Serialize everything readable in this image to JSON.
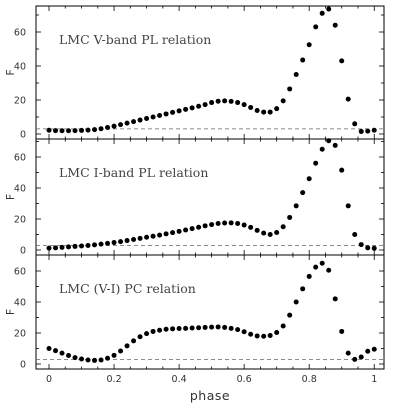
{
  "chart_data": [
    {
      "type": "scatter",
      "title": "LMC V-band PL relation",
      "ylabel": "F",
      "xlabel": "",
      "xlim": [
        -0.04,
        1.03
      ],
      "ylim": [
        -1,
        78
      ],
      "yticks": [
        "0",
        "20",
        "40",
        "60"
      ],
      "xticks": [
        "0",
        "0.2",
        "0.4",
        "0.6",
        "0.8",
        "1"
      ],
      "reference_line": 3,
      "x": [
        0.0,
        0.02,
        0.04,
        0.06,
        0.08,
        0.1,
        0.12,
        0.14,
        0.16,
        0.18,
        0.2,
        0.22,
        0.24,
        0.26,
        0.28,
        0.3,
        0.32,
        0.34,
        0.36,
        0.38,
        0.4,
        0.42,
        0.44,
        0.46,
        0.48,
        0.5,
        0.52,
        0.54,
        0.56,
        0.58,
        0.6,
        0.62,
        0.64,
        0.66,
        0.68,
        0.7,
        0.72,
        0.74,
        0.76,
        0.78,
        0.8,
        0.82,
        0.84,
        0.86,
        0.88,
        0.9,
        0.92,
        0.94,
        0.96,
        0.98,
        1.0
      ],
      "y": [
        2.2,
        2.0,
        1.9,
        1.9,
        2.0,
        2.1,
        2.3,
        2.6,
        3.1,
        3.8,
        4.6,
        5.5,
        6.4,
        7.3,
        8.2,
        9.1,
        10.0,
        10.9,
        11.8,
        12.7,
        13.6,
        14.5,
        15.4,
        16.3,
        17.3,
        18.5,
        19.3,
        19.5,
        19.2,
        18.5,
        17.3,
        15.6,
        13.8,
        12.9,
        12.9,
        14.9,
        19.5,
        26.5,
        35.0,
        43.5,
        52.5,
        63.0,
        71.0,
        73.5,
        64.0,
        43.0,
        20.5,
        6.0,
        1.5,
        1.7,
        2.2
      ]
    },
    {
      "type": "scatter",
      "title": "LMC I-band PL relation",
      "ylabel": "F",
      "xlabel": "",
      "xlim": [
        -0.04,
        1.03
      ],
      "ylim": [
        -1,
        78
      ],
      "yticks": [
        "0",
        "20",
        "40",
        "60"
      ],
      "xticks": [
        "0",
        "0.2",
        "0.4",
        "0.6",
        "0.8",
        "1"
      ],
      "reference_line": 3,
      "x": [
        0.0,
        0.02,
        0.04,
        0.06,
        0.08,
        0.1,
        0.12,
        0.14,
        0.16,
        0.18,
        0.2,
        0.22,
        0.24,
        0.26,
        0.28,
        0.3,
        0.32,
        0.34,
        0.36,
        0.38,
        0.4,
        0.42,
        0.44,
        0.46,
        0.48,
        0.5,
        0.52,
        0.54,
        0.56,
        0.58,
        0.6,
        0.62,
        0.64,
        0.66,
        0.68,
        0.7,
        0.72,
        0.74,
        0.76,
        0.78,
        0.8,
        0.82,
        0.84,
        0.86,
        0.88,
        0.9,
        0.92,
        0.94,
        0.96,
        0.98,
        1.0
      ],
      "y": [
        1.2,
        1.4,
        1.7,
        2.0,
        2.3,
        2.6,
        2.9,
        3.3,
        3.8,
        4.3,
        4.8,
        5.4,
        6.1,
        6.8,
        7.5,
        8.2,
        8.9,
        9.6,
        10.4,
        11.2,
        12.0,
        12.9,
        13.8,
        14.7,
        15.6,
        16.4,
        17.1,
        17.4,
        17.5,
        17.1,
        16.1,
        14.6,
        12.7,
        10.9,
        10.0,
        11.3,
        15.0,
        21.0,
        28.5,
        37.0,
        46.0,
        56.0,
        65.0,
        70.5,
        67.5,
        51.5,
        28.5,
        10.0,
        3.5,
        1.4,
        1.1
      ]
    },
    {
      "type": "scatter",
      "title": "LMC (V-I) PC relation",
      "ylabel": "F",
      "xlabel": "phase",
      "xlim": [
        -0.04,
        1.03
      ],
      "ylim": [
        -1,
        78
      ],
      "yticks": [
        "0",
        "20",
        "40",
        "60"
      ],
      "xticks": [
        "0",
        "0.2",
        "0.4",
        "0.6",
        "0.8",
        "1"
      ],
      "reference_line": 3,
      "x": [
        0.0,
        0.02,
        0.04,
        0.06,
        0.08,
        0.1,
        0.12,
        0.14,
        0.16,
        0.18,
        0.2,
        0.22,
        0.24,
        0.26,
        0.28,
        0.3,
        0.32,
        0.34,
        0.36,
        0.38,
        0.4,
        0.42,
        0.44,
        0.46,
        0.48,
        0.5,
        0.52,
        0.54,
        0.56,
        0.58,
        0.6,
        0.62,
        0.64,
        0.66,
        0.68,
        0.7,
        0.72,
        0.74,
        0.76,
        0.78,
        0.8,
        0.82,
        0.84,
        0.86,
        0.88,
        0.9,
        0.92,
        0.94,
        0.96,
        0.98,
        1.0
      ],
      "y": [
        10.0,
        8.6,
        7.0,
        5.5,
        4.1,
        3.2,
        2.6,
        2.3,
        2.6,
        3.7,
        5.6,
        8.4,
        11.7,
        14.9,
        17.6,
        19.6,
        21.0,
        21.8,
        22.4,
        22.7,
        22.9,
        23.0,
        23.2,
        23.4,
        23.6,
        23.8,
        23.9,
        23.6,
        23.0,
        22.2,
        20.8,
        19.2,
        18.1,
        17.9,
        18.4,
        20.3,
        24.5,
        31.5,
        40.0,
        48.5,
        56.5,
        62.5,
        65.0,
        60.5,
        42.0,
        21.0,
        7.0,
        3.0,
        4.5,
        8.2,
        9.5
      ]
    }
  ]
}
